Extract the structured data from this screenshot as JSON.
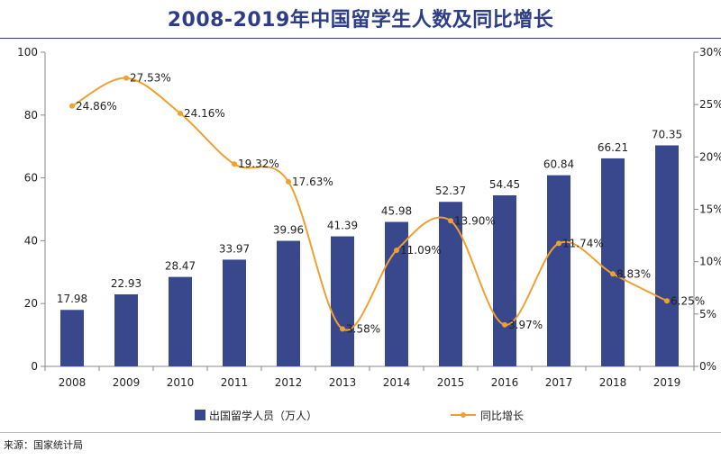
{
  "page": {
    "title": "2008-2019年中国留学生人数及同比增长",
    "source": "来源：国家统计局"
  },
  "colors": {
    "bar": "#39478d",
    "line": "#f0a030",
    "title": "#2d3e87"
  },
  "chart_data": {
    "type": "bar",
    "categories": [
      "2008",
      "2009",
      "2010",
      "2011",
      "2012",
      "2013",
      "2014",
      "2015",
      "2016",
      "2017",
      "2018",
      "2019"
    ],
    "series": [
      {
        "name": "出国留学人员（万人）",
        "type": "bar",
        "axis": "left",
        "values": [
          17.98,
          22.93,
          28.47,
          33.97,
          39.96,
          41.39,
          45.98,
          52.37,
          54.45,
          60.84,
          66.21,
          70.35
        ],
        "labels": [
          "17.98",
          "22.93",
          "28.47",
          "33.97",
          "39.96",
          "41.39",
          "45.98",
          "52.37",
          "54.45",
          "60.84",
          "66.21",
          "70.35"
        ]
      },
      {
        "name": "同比增长",
        "type": "line",
        "axis": "right",
        "values": [
          24.86,
          27.53,
          24.16,
          19.32,
          17.63,
          3.58,
          11.09,
          13.9,
          3.97,
          11.74,
          8.83,
          6.25
        ],
        "labels": [
          "24.86%",
          "27.53%",
          "24.16%",
          "19.32%",
          "17.63%",
          "3.58%",
          "11.09%",
          "13.90%",
          "3.97%",
          "11.74%",
          "8.83%",
          "6.25%"
        ]
      }
    ],
    "left_axis": {
      "ylim": [
        0,
        100
      ],
      "ticks": [
        "0",
        "20",
        "40",
        "60",
        "80",
        "100"
      ]
    },
    "right_axis": {
      "ylim": [
        0,
        30
      ],
      "ticks": [
        "0%",
        "5%",
        "10%",
        "15%",
        "20%",
        "25%",
        "30%"
      ]
    },
    "legend_position": "bottom",
    "grid": false
  }
}
